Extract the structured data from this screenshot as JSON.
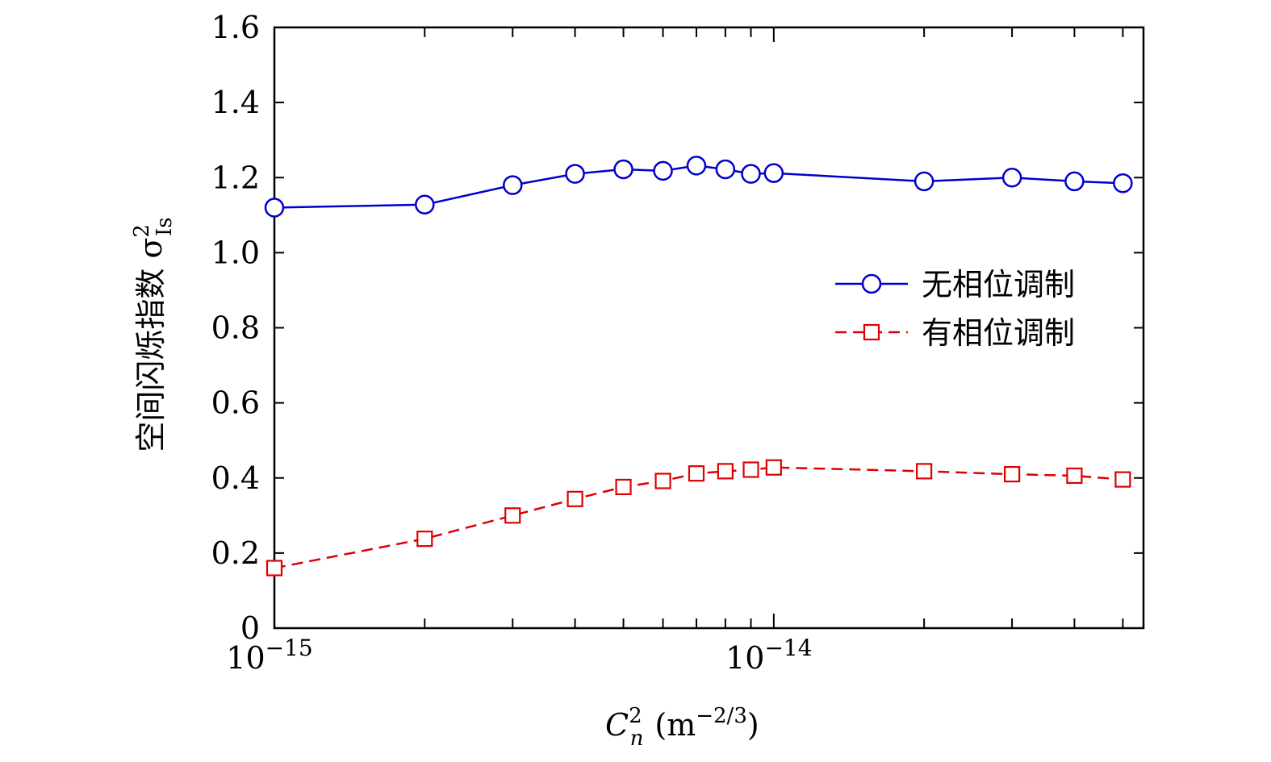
{
  "chart_data": {
    "type": "line",
    "x_scale": "log",
    "xlim": [
      1e-15,
      5.5e-14
    ],
    "ylim": [
      0,
      1.6
    ],
    "x": [
      1e-15,
      2e-15,
      3e-15,
      4e-15,
      5e-15,
      6e-15,
      7e-15,
      8e-15,
      9e-15,
      1e-14,
      2e-14,
      3e-14,
      4e-14,
      5e-14
    ],
    "x_ticks": [
      {
        "value": 1e-15,
        "base": "10",
        "exp": "−15"
      },
      {
        "value": 1e-14,
        "base": "10",
        "exp": "−14"
      }
    ],
    "y_ticks": [
      "0",
      "0.2",
      "0.4",
      "0.6",
      "0.8",
      "1.0",
      "1.2",
      "1.4",
      "1.6"
    ],
    "xlabel": {
      "main": "C",
      "sub": "n",
      "sup": "2",
      "unit_open": "(m",
      "unit_sup": "−2/3",
      "unit_close": ")"
    },
    "ylabel": {
      "main": "空间闪烁指数 σ",
      "sub": "Is",
      "sup": "2"
    },
    "legend_position": "right-middle",
    "series": [
      {
        "name": "无相位调制",
        "color": "#0000cc",
        "marker": "circle",
        "line": "solid",
        "values": [
          1.12,
          1.128,
          1.18,
          1.21,
          1.222,
          1.218,
          1.232,
          1.222,
          1.21,
          1.212,
          1.19,
          1.2,
          1.19,
          1.185
        ]
      },
      {
        "name": "有相位调制",
        "color": "#dd0000",
        "marker": "square",
        "line": "dashed",
        "values": [
          0.16,
          0.238,
          0.3,
          0.344,
          0.376,
          0.392,
          0.412,
          0.418,
          0.422,
          0.428,
          0.418,
          0.41,
          0.406,
          0.396
        ]
      }
    ]
  }
}
